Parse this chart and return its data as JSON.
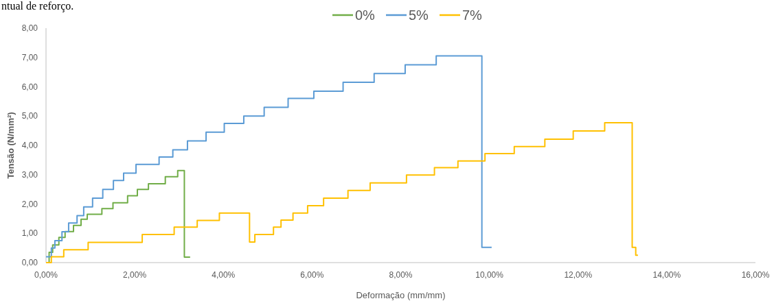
{
  "chart_data": {
    "type": "step",
    "xlabel": "Deformação (mm/mm)",
    "ylabel": "Tensão (N/mm²)",
    "annotations": [
      "ntual de reforço."
    ],
    "xlim": [
      0,
      16
    ],
    "xticks": [
      {
        "value": 0,
        "label": "0,00%"
      },
      {
        "value": 2,
        "label": "2,00%"
      },
      {
        "value": 4,
        "label": "4,00%"
      },
      {
        "value": 6,
        "label": "6,00%"
      },
      {
        "value": 8,
        "label": "8,00%"
      },
      {
        "value": 10,
        "label": "10,00%"
      },
      {
        "value": 12,
        "label": "12,00%"
      },
      {
        "value": 14,
        "label": "14,00%"
      },
      {
        "value": 16,
        "label": "16,00%"
      }
    ],
    "ylim": [
      0,
      8
    ],
    "yticks": [
      {
        "value": 0,
        "label": "0,00"
      },
      {
        "value": 1,
        "label": "1,00"
      },
      {
        "value": 2,
        "label": "2,00"
      },
      {
        "value": 3,
        "label": "3,00"
      },
      {
        "value": 4,
        "label": "4,00"
      },
      {
        "value": 5,
        "label": "5,00"
      },
      {
        "value": 6,
        "label": "6,00"
      },
      {
        "value": 7,
        "label": "7,00"
      },
      {
        "value": 8,
        "label": "8,00"
      }
    ],
    "grid": false,
    "legend": "top",
    "line_style": "solid",
    "marker": "none",
    "series": [
      {
        "name": "0%",
        "color": "#70ad47",
        "x": [
          0,
          0.07,
          0.15,
          0.29,
          0.43,
          0.62,
          0.79,
          0.93,
          1.26,
          1.51,
          1.84,
          2.06,
          2.31,
          2.69,
          2.97,
          3.12,
          3.25
        ],
        "values": [
          0,
          0.35,
          0.6,
          0.86,
          1.06,
          1.27,
          1.48,
          1.65,
          1.84,
          2.04,
          2.28,
          2.5,
          2.69,
          2.93,
          3.14,
          0.19,
          0.19
        ]
      },
      {
        "name": "5%",
        "color": "#5b9bd5",
        "x": [
          0,
          0.12,
          0.2,
          0.36,
          0.51,
          0.7,
          0.85,
          1.05,
          1.28,
          1.52,
          1.75,
          2.03,
          2.55,
          2.86,
          3.19,
          3.61,
          4.02,
          4.46,
          4.92,
          5.46,
          6.04,
          6.7,
          7.4,
          8.1,
          8.8,
          9.83,
          10.05
        ],
        "values": [
          0.2,
          0.5,
          0.75,
          1.05,
          1.35,
          1.6,
          1.9,
          2.2,
          2.5,
          2.8,
          3.05,
          3.35,
          3.6,
          3.85,
          4.15,
          4.45,
          4.75,
          5.0,
          5.3,
          5.6,
          5.85,
          6.15,
          6.45,
          6.75,
          7.05,
          0.52,
          0.52
        ]
      },
      {
        "name": "7%",
        "color": "#ffc000",
        "x": [
          0,
          0.12,
          0.4,
          0.95,
          2.17,
          2.89,
          3.41,
          3.91,
          4.59,
          4.71,
          5.13,
          5.3,
          5.57,
          5.9,
          6.26,
          6.81,
          7.31,
          8.13,
          8.76,
          9.29,
          9.9,
          10.56,
          11.25,
          11.89,
          12.6,
          13.22,
          13.3,
          13.35
        ],
        "values": [
          0,
          0.2,
          0.44,
          0.69,
          0.96,
          1.21,
          1.44,
          1.69,
          0.7,
          0.96,
          1.21,
          1.45,
          1.69,
          1.94,
          2.2,
          2.46,
          2.72,
          2.99,
          3.24,
          3.47,
          3.72,
          3.96,
          4.21,
          4.49,
          4.77,
          0.52,
          0.25,
          0.25
        ]
      }
    ]
  }
}
